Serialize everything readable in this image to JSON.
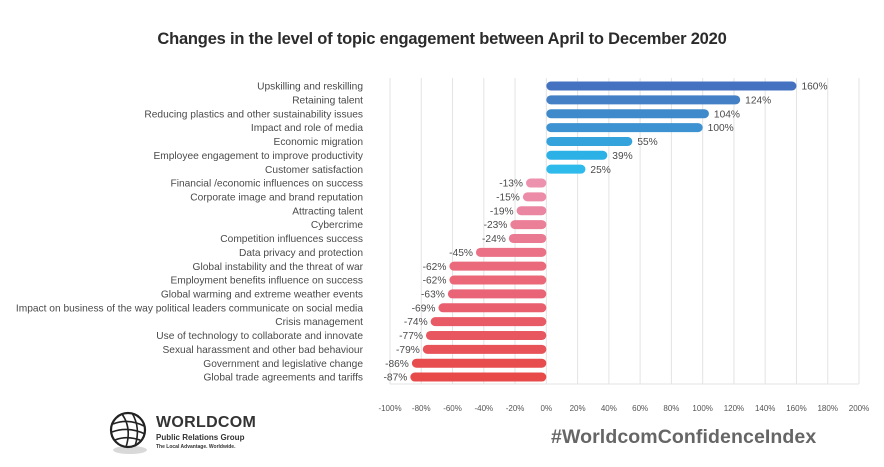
{
  "chart_data": {
    "type": "bar",
    "orientation": "horizontal",
    "title": "Changes in the level of topic engagement between April to December 2020",
    "xlabel": "",
    "ylabel": "",
    "xlim": [
      -100,
      200
    ],
    "grid": true,
    "x_ticks": [
      "-100%",
      "-80%",
      "-60%",
      "-40%",
      "-20%",
      "0%",
      "20%",
      "40%",
      "60%",
      "80%",
      "100%",
      "120%",
      "140%",
      "160%",
      "180%",
      "200%"
    ],
    "x_tick_values": [
      -100,
      -80,
      -60,
      -40,
      -20,
      0,
      20,
      40,
      60,
      80,
      100,
      120,
      140,
      160,
      180,
      200
    ],
    "categories": [
      "Upskilling and reskilling",
      "Retaining talent",
      "Reducing plastics and other sustainability issues",
      "Impact and role of media",
      "Economic migration",
      "Employee engagement to improve productivity",
      "Customer satisfaction",
      "Financial /economic influences on success",
      "Corporate image and brand reputation",
      "Attracting talent",
      "Cybercrime",
      "Competition influences success",
      "Data privacy and protection",
      "Global instability and the threat of war",
      "Employment benefits influence on success",
      "Global warming and extreme weather events",
      "Impact on business of the way political leaders communicate on social media",
      "Crisis management",
      "Use of technology to collaborate and innovate",
      "Sexual harassment and other bad behaviour",
      "Government and legislative change",
      "Global trade agreements and tariffs"
    ],
    "values": [
      160,
      124,
      104,
      100,
      55,
      39,
      25,
      -13,
      -15,
      -19,
      -23,
      -24,
      -45,
      -62,
      -62,
      -63,
      -69,
      -74,
      -77,
      -79,
      -86,
      -87
    ],
    "data_labels": [
      "160%",
      "124%",
      "104%",
      "100%",
      "55%",
      "39%",
      "25%",
      "-13%",
      "-15%",
      "-19%",
      "-23%",
      "-24%",
      "-45%",
      "-62%",
      "-62%",
      "-63%",
      "-69%",
      "-74%",
      "-77%",
      "-79%",
      "-86%",
      "-87%"
    ],
    "colors": [
      "#4472c0",
      "#4480c6",
      "#3f8acb",
      "#3d92d1",
      "#34a3dc",
      "#2cb1e6",
      "#2ebbeb",
      "#ec92ae",
      "#ec8ca9",
      "#ea86a2",
      "#eb7f98",
      "#ea7a92",
      "#ea7186",
      "#ea6a7c",
      "#ea6878",
      "#e96476",
      "#e95f6e",
      "#e85a66",
      "#e8565f",
      "#e85259",
      "#e74d4e",
      "#e74a48"
    ]
  },
  "branding": {
    "logo_name": "WORLDCOM",
    "logo_subtitle": "Public Relations Group",
    "logo_tagline": "The Local Advantage. Worldwide.",
    "hashtag": "#WorldcomConfidenceIndex"
  },
  "colors": {
    "grid": "#e3e3e3",
    "text": "#4a4a4a"
  }
}
